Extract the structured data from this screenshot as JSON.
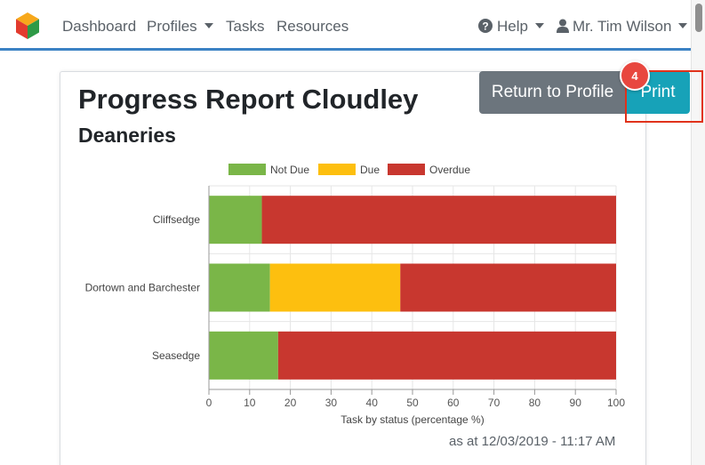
{
  "navbar": {
    "logo_icon": "app-logo-cube",
    "items": [
      {
        "label": "Dashboard",
        "dropdown": false
      },
      {
        "label": "Profiles",
        "dropdown": true
      },
      {
        "label": "Tasks",
        "dropdown": false
      },
      {
        "label": "Resources",
        "dropdown": false
      }
    ],
    "help_label": "Help",
    "help_icon": "question-circle-icon",
    "user_label": "Mr. Tim Wilson",
    "user_icon": "user-icon",
    "accent_color": "#3b82c4"
  },
  "page": {
    "title": "Progress Report Cloudley",
    "section": "Deaneries",
    "timestamp": "as at 12/03/2019 - 11:17 AM"
  },
  "toolbar": {
    "return_label": "Return to Profile",
    "print_label": "Print",
    "step_badge": "4"
  },
  "chart_data": {
    "type": "bar",
    "orientation": "horizontal",
    "stacked": true,
    "categories": [
      "Cliffsedge",
      "Dortown and Barchester",
      "Seasedge"
    ],
    "series": [
      {
        "name": "Not Due",
        "color": "#7ab648",
        "values": [
          13,
          15,
          17
        ]
      },
      {
        "name": "Due",
        "color": "#fdbf0f",
        "values": [
          0,
          32,
          0
        ]
      },
      {
        "name": "Overdue",
        "color": "#c8372f",
        "values": [
          87,
          53,
          83
        ]
      }
    ],
    "xlim": [
      0,
      100
    ],
    "xticks": [
      "0",
      "10",
      "20",
      "30",
      "40",
      "50",
      "60",
      "70",
      "80",
      "90",
      "100"
    ],
    "xlabel": "Task by status (percentage %)",
    "legend_position": "top"
  }
}
